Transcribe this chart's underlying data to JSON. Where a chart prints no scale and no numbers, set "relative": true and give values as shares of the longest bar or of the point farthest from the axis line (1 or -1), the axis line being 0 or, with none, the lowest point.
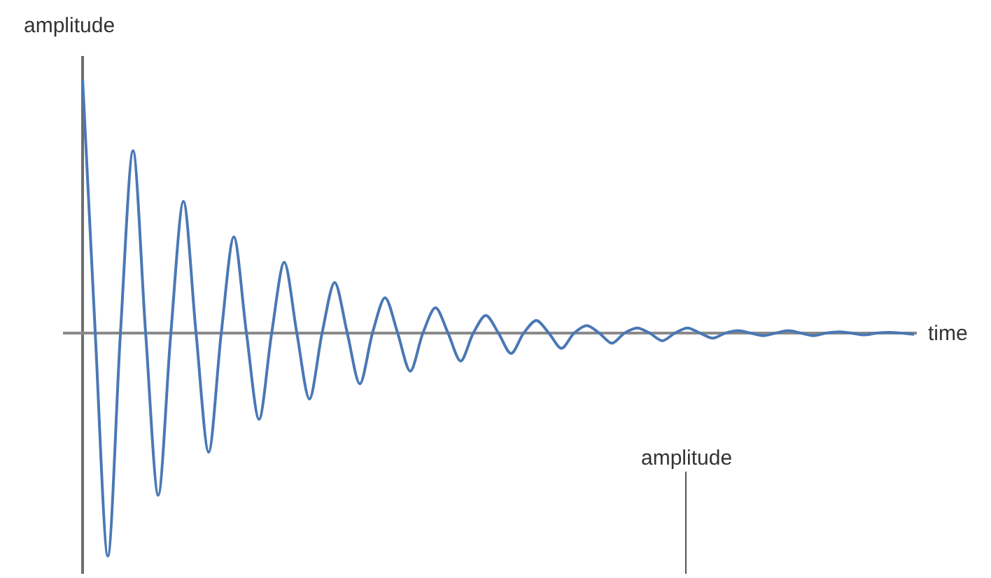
{
  "chart_data": {
    "type": "line",
    "relative": true,
    "ylabel": "amplitude",
    "xlabel": "time",
    "annotations": [
      "amplitude"
    ],
    "marker": "none",
    "line_style": "solid",
    "categories": [
      null,
      null,
      null,
      null,
      null,
      null,
      null,
      null,
      null,
      null,
      null,
      null,
      null,
      null,
      null,
      null,
      null,
      null,
      null,
      null,
      null,
      null,
      null,
      null,
      null,
      null,
      null,
      null,
      null,
      null,
      null,
      null,
      null,
      null,
      null,
      null,
      null,
      null,
      null,
      null,
      null,
      null,
      null,
      null,
      null,
      null,
      null,
      null,
      null,
      null,
      null,
      null,
      null,
      null,
      null,
      null,
      null,
      null,
      null,
      null,
      null,
      null,
      null,
      null,
      null,
      null,
      null
    ],
    "series": [
      {
        "color": "#4a78b5",
        "values": [
          1,
          0,
          -0.88,
          0,
          0.72,
          0,
          -0.64,
          0,
          0.52,
          0,
          -0.47,
          0,
          0.38,
          0,
          -0.34,
          0,
          0.28,
          0,
          -0.26,
          0,
          0.2,
          0,
          -0.2,
          0,
          0.14,
          0,
          -0.15,
          0,
          0.1,
          0,
          -0.11,
          0,
          0.07,
          0,
          -0.08,
          0,
          0.05,
          0,
          -0.06,
          0,
          0.03,
          0,
          -0.04,
          0,
          0.02,
          0,
          -0.03,
          0,
          0.02,
          0,
          -0.02,
          0,
          0.01,
          0,
          -0.01,
          0,
          0.01,
          0,
          -0.01,
          0,
          0.005,
          0,
          -0.007,
          0,
          0.003,
          0,
          -0.005
        ]
      }
    ]
  }
}
